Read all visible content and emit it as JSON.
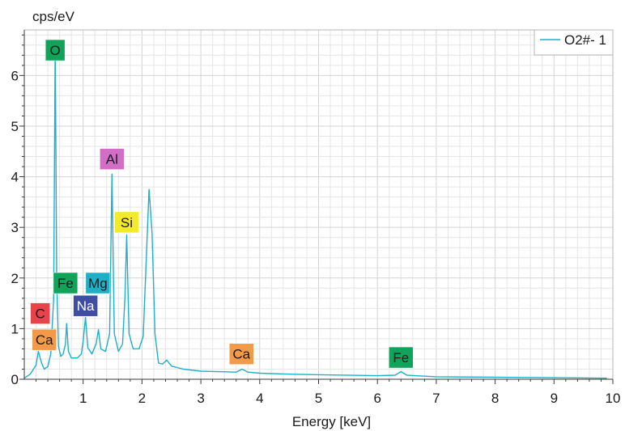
{
  "chart_data": {
    "type": "line",
    "title": "",
    "xlabel": "Energy [keV]",
    "ylabel": "cps/eV",
    "xlim": [
      0,
      10
    ],
    "ylim": [
      0,
      6.9
    ],
    "x_ticks": [
      1,
      2,
      3,
      4,
      5,
      6,
      7,
      8,
      9,
      10
    ],
    "y_ticks": [
      0,
      1,
      2,
      3,
      4,
      5,
      6
    ],
    "grid": true,
    "legend_position": "top-right",
    "series": [
      {
        "name": "O2#- 1",
        "color": "#1fb0c8",
        "points": [
          [
            0.0,
            0.02
          ],
          [
            0.1,
            0.1
          ],
          [
            0.2,
            0.28
          ],
          [
            0.24,
            0.55
          ],
          [
            0.27,
            0.42
          ],
          [
            0.3,
            0.3
          ],
          [
            0.34,
            0.2
          ],
          [
            0.4,
            0.25
          ],
          [
            0.45,
            0.5
          ],
          [
            0.5,
            1.6
          ],
          [
            0.525,
            6.7
          ],
          [
            0.55,
            2.0
          ],
          [
            0.58,
            0.65
          ],
          [
            0.62,
            0.45
          ],
          [
            0.66,
            0.5
          ],
          [
            0.7,
            0.7
          ],
          [
            0.72,
            1.1
          ],
          [
            0.75,
            0.55
          ],
          [
            0.8,
            0.42
          ],
          [
            0.9,
            0.42
          ],
          [
            0.97,
            0.5
          ],
          [
            1.0,
            0.75
          ],
          [
            1.04,
            1.22
          ],
          [
            1.08,
            0.62
          ],
          [
            1.15,
            0.5
          ],
          [
            1.22,
            0.7
          ],
          [
            1.26,
            0.98
          ],
          [
            1.3,
            0.6
          ],
          [
            1.38,
            0.55
          ],
          [
            1.45,
            0.9
          ],
          [
            1.49,
            4.05
          ],
          [
            1.53,
            0.9
          ],
          [
            1.6,
            0.55
          ],
          [
            1.67,
            0.7
          ],
          [
            1.71,
            1.6
          ],
          [
            1.74,
            2.85
          ],
          [
            1.78,
            0.9
          ],
          [
            1.85,
            0.6
          ],
          [
            1.95,
            0.6
          ],
          [
            2.02,
            0.85
          ],
          [
            2.07,
            2.3
          ],
          [
            2.12,
            3.75
          ],
          [
            2.17,
            2.9
          ],
          [
            2.22,
            0.9
          ],
          [
            2.28,
            0.32
          ],
          [
            2.35,
            0.3
          ],
          [
            2.42,
            0.38
          ],
          [
            2.5,
            0.26
          ],
          [
            2.7,
            0.2
          ],
          [
            3.0,
            0.16
          ],
          [
            3.3,
            0.15
          ],
          [
            3.6,
            0.14
          ],
          [
            3.7,
            0.2
          ],
          [
            3.8,
            0.14
          ],
          [
            4.0,
            0.12
          ],
          [
            4.5,
            0.1
          ],
          [
            5.0,
            0.09
          ],
          [
            6.0,
            0.07
          ],
          [
            6.3,
            0.08
          ],
          [
            6.4,
            0.15
          ],
          [
            6.5,
            0.08
          ],
          [
            7.0,
            0.05
          ],
          [
            8.0,
            0.04
          ],
          [
            9.0,
            0.03
          ],
          [
            9.9,
            0.02
          ]
        ]
      }
    ],
    "annotations": [
      {
        "label": "O",
        "x": 0.525,
        "y": 6.5,
        "color": "#12a35a",
        "text_color": "#1a1a1a"
      },
      {
        "label": "Al",
        "x": 1.49,
        "y": 4.35,
        "color": "#d36ec7",
        "text_color": "#1a1a1a"
      },
      {
        "label": "Si",
        "x": 1.74,
        "y": 3.1,
        "color": "#f2ea2a",
        "text_color": "#1a1a1a"
      },
      {
        "label": "Fe",
        "x": 0.7,
        "y": 1.9,
        "color": "#12a35a",
        "text_color": "#1a1a1a"
      },
      {
        "label": "Mg",
        "x": 1.25,
        "y": 1.9,
        "color": "#1fb0c8",
        "text_color": "#1a1a1a"
      },
      {
        "label": "Na",
        "x": 1.04,
        "y": 1.45,
        "color": "#3f4ea3",
        "text_color": "#ffffff"
      },
      {
        "label": "C",
        "x": 0.27,
        "y": 1.3,
        "color": "#e8434b",
        "text_color": "#1a1a1a"
      },
      {
        "label": "Ca",
        "x": 0.34,
        "y": 0.78,
        "color": "#f29a4a",
        "text_color": "#1a1a1a"
      },
      {
        "label": "Ca",
        "x": 3.69,
        "y": 0.5,
        "color": "#f29a4a",
        "text_color": "#1a1a1a"
      },
      {
        "label": "Fe",
        "x": 6.4,
        "y": 0.43,
        "color": "#12a35a",
        "text_color": "#1a1a1a"
      }
    ]
  }
}
